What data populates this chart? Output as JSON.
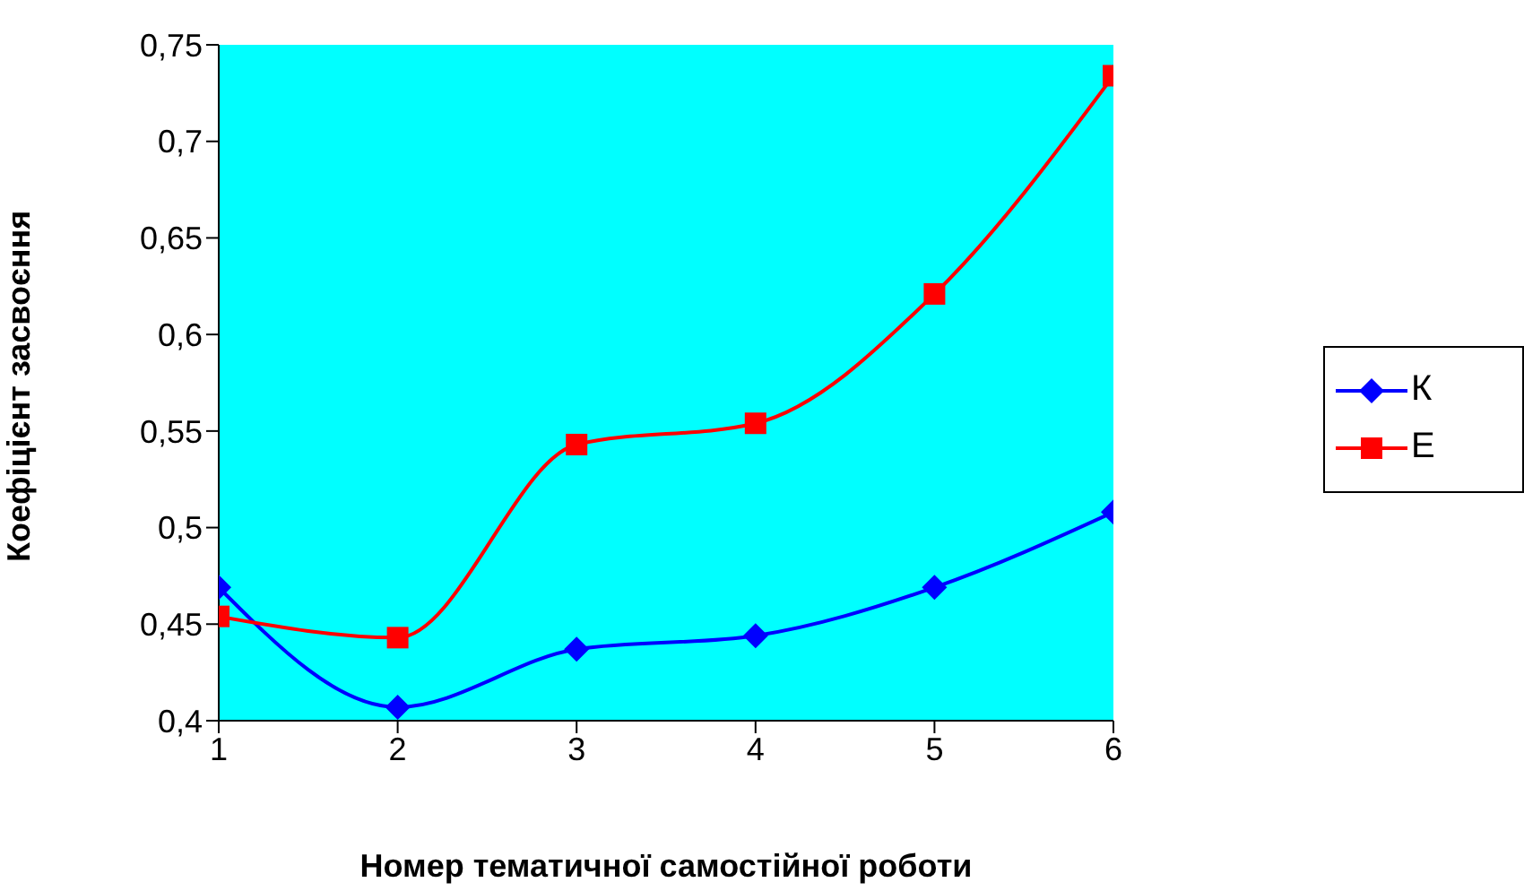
{
  "chart_data": {
    "type": "line",
    "xlabel": "Номер тематичної самостійної роботи",
    "ylabel": "Коефіцієнт засвоєння",
    "x": [
      1,
      2,
      3,
      4,
      5,
      6
    ],
    "xlim": [
      1,
      6
    ],
    "xticks": [
      1,
      2,
      3,
      4,
      5,
      6
    ],
    "ylim": [
      0.4,
      0.75
    ],
    "yticks": [
      {
        "value": 0.4,
        "label": "0,4"
      },
      {
        "value": 0.45,
        "label": "0,45"
      },
      {
        "value": 0.5,
        "label": "0,5"
      },
      {
        "value": 0.55,
        "label": "0,55"
      },
      {
        "value": 0.6,
        "label": "0,6"
      },
      {
        "value": 0.65,
        "label": "0,65"
      },
      {
        "value": 0.7,
        "label": "0,7"
      },
      {
        "value": 0.75,
        "label": "0,75"
      }
    ],
    "series": [
      {
        "name": "К",
        "color": "#0000ff",
        "marker": "diamond",
        "values": [
          0.469,
          0.407,
          0.437,
          0.444,
          0.469,
          0.508
        ]
      },
      {
        "name": "Е",
        "color": "#ff0000",
        "marker": "square",
        "values": [
          0.454,
          0.443,
          0.543,
          0.554,
          0.621,
          0.734
        ]
      }
    ],
    "legend": "right",
    "grid": false,
    "line_style": "solid"
  }
}
